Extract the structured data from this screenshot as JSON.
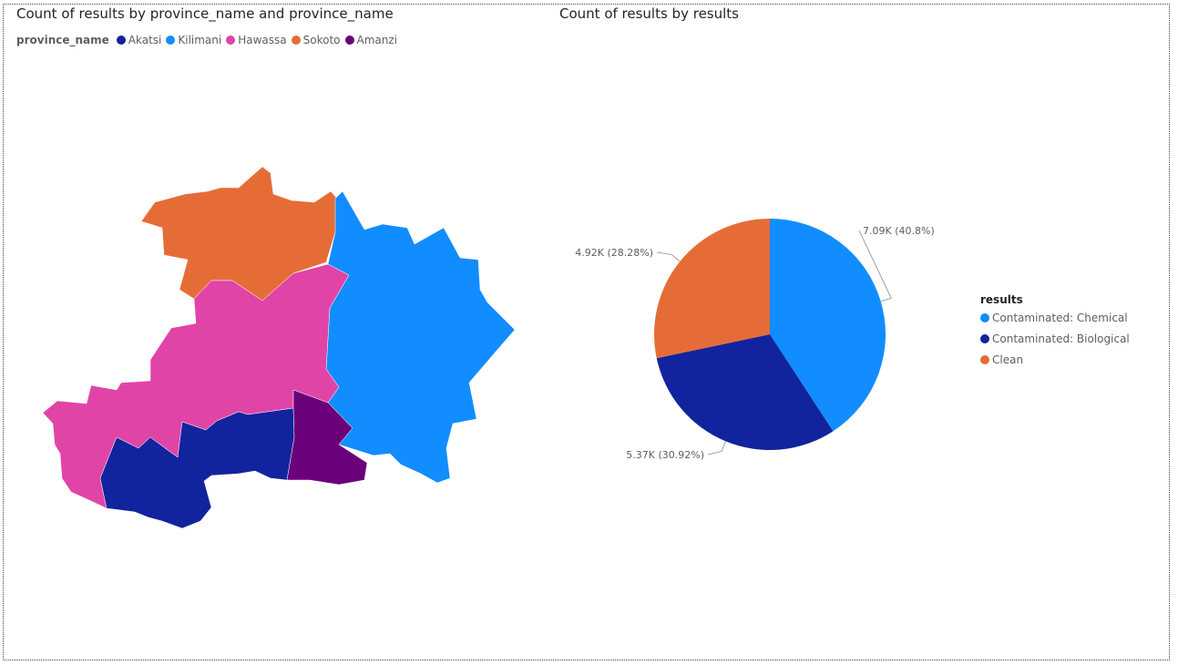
{
  "map_visual": {
    "title": "Count of results by province_name and province_name",
    "legend_title": "province_name",
    "legend_items": [
      {
        "label": "Akatsi",
        "color": "#12239E"
      },
      {
        "label": "Kilimani",
        "color": "#118DFF"
      },
      {
        "label": "Hawassa",
        "color": "#E044A7"
      },
      {
        "label": "Sokoto",
        "color": "#E66C37"
      },
      {
        "label": "Amanzi",
        "color": "#6B007B"
      }
    ]
  },
  "pie_visual": {
    "title": "Count of results by results",
    "legend_title": "results"
  },
  "chart_data": [
    {
      "type": "table",
      "title": "Count of results by province_name and province_name",
      "legend": "top-left",
      "categories": [
        "Akatsi",
        "Kilimani",
        "Hawassa",
        "Sokoto",
        "Amanzi"
      ]
    },
    {
      "type": "pie",
      "title": "Count of results by results",
      "legend": "right",
      "slices": [
        {
          "label": "Contaminated: Chemical",
          "value": 7090,
          "display": "7.09K (40.8%)",
          "color": "#118DFF"
        },
        {
          "label": "Contaminated: Biological",
          "value": 5370,
          "display": "5.37K (30.92%)",
          "color": "#12239E"
        },
        {
          "label": "Clean",
          "value": 4920,
          "display": "4.92K (28.28%)",
          "color": "#E66C37"
        }
      ]
    }
  ]
}
